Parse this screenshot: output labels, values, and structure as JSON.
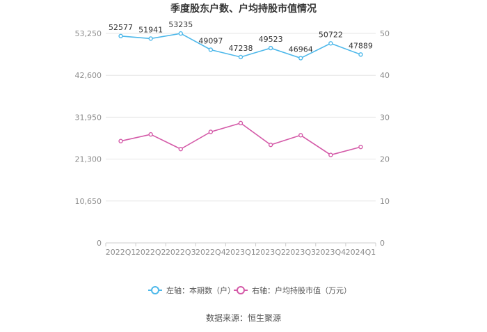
{
  "colors": {
    "series_left": "#4db8ea",
    "series_right": "#d45aa8",
    "grid": "#e6e6e6",
    "axis_text": "#8c8c8c",
    "title": "#333333",
    "data_label": "#333333"
  },
  "chart_data": {
    "type": "line",
    "title": "季度股东户数、户均持股市值情况",
    "source": "数据来源：恒生聚源",
    "categories": [
      "2022Q1",
      "2022Q2",
      "2022Q3",
      "2022Q4",
      "2023Q1",
      "2023Q2",
      "2023Q3",
      "2023Q4",
      "2024Q1"
    ],
    "left_axis": {
      "min": 0,
      "max": 53250,
      "ticks": [
        0,
        10650,
        21300,
        31950,
        42600,
        53250
      ],
      "tick_labels": [
        "0",
        "10,650",
        "21,300",
        "31,950",
        "42,600",
        "53,250"
      ]
    },
    "right_axis": {
      "min": 0,
      "max": 50,
      "ticks": [
        0,
        10,
        20,
        30,
        40,
        50
      ],
      "tick_labels": [
        "0",
        "10",
        "20",
        "30",
        "40",
        "50"
      ]
    },
    "grid": true,
    "legend_position": "bottom",
    "series": [
      {
        "name": "左轴：本期数（户）",
        "axis": "left",
        "values": [
          52577,
          51941,
          53235,
          49097,
          47238,
          49523,
          46964,
          50722,
          47889
        ],
        "labels": [
          "52577",
          "51941",
          "53235",
          "49097",
          "47238",
          "49523",
          "46964",
          "50722",
          "47889"
        ]
      },
      {
        "name": "右轴：户均持股市值（万元）",
        "axis": "right",
        "values": [
          24.3,
          25.9,
          22.4,
          26.5,
          28.6,
          23.4,
          25.7,
          21.0,
          22.9
        ]
      }
    ]
  }
}
